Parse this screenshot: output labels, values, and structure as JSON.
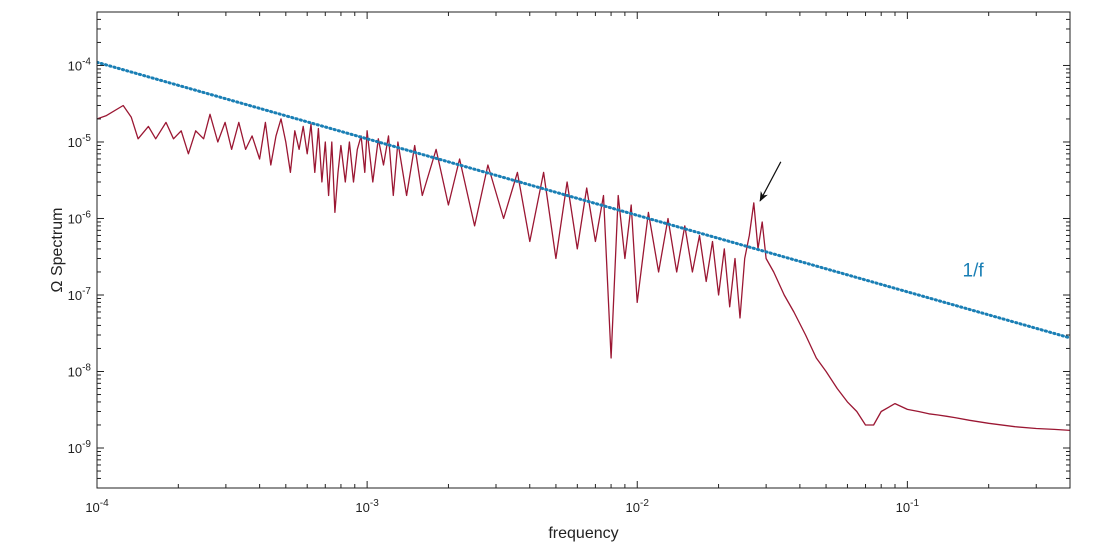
{
  "chart_data": {
    "type": "line",
    "xlabel": "frequency",
    "ylabel": "Ω Spectrum",
    "x_scale": "log",
    "y_scale": "log",
    "xlim": [
      0.0001,
      0.4
    ],
    "ylim": [
      3e-10,
      0.0005
    ],
    "x_ticks": [
      {
        "value": 0.0001,
        "base": "10",
        "exp": "-4"
      },
      {
        "value": 0.001,
        "base": "10",
        "exp": "-3"
      },
      {
        "value": 0.01,
        "base": "10",
        "exp": "-2"
      },
      {
        "value": 0.1,
        "base": "10",
        "exp": "-1"
      }
    ],
    "y_ticks": [
      {
        "value": 1e-09,
        "base": "10",
        "exp": "-9"
      },
      {
        "value": 1e-08,
        "base": "10",
        "exp": "-8"
      },
      {
        "value": 1e-07,
        "base": "10",
        "exp": "-7"
      },
      {
        "value": 1e-06,
        "base": "10",
        "exp": "-6"
      },
      {
        "value": 1e-05,
        "base": "10",
        "exp": "-5"
      },
      {
        "value": 0.0001,
        "base": "10",
        "exp": "-4"
      }
    ],
    "grid": false,
    "box": true,
    "series": [
      {
        "color": "#9b1733",
        "style": "solid",
        "x": [
          0.0001,
          0.000108,
          0.000125,
          0.000134,
          0.000142,
          0.000155,
          0.000165,
          0.00018,
          0.000192,
          0.000205,
          0.000218,
          0.000232,
          0.000248,
          0.000262,
          0.00028,
          0.000298,
          0.000315,
          0.000335,
          0.000355,
          0.000375,
          0.0004,
          0.00042,
          0.00044,
          0.00046,
          0.00048,
          0.0005,
          0.00052,
          0.00054,
          0.00056,
          0.00058,
          0.0006,
          0.00062,
          0.00064,
          0.00066,
          0.00068,
          0.0007,
          0.00072,
          0.00074,
          0.00076,
          0.00078,
          0.0008,
          0.00083,
          0.00086,
          0.00089,
          0.00092,
          0.00095,
          0.00098,
          0.001,
          0.00105,
          0.0011,
          0.00115,
          0.0012,
          0.00125,
          0.0013,
          0.0014,
          0.0015,
          0.0016,
          0.0018,
          0.002,
          0.0022,
          0.0025,
          0.0028,
          0.0032,
          0.0036,
          0.004,
          0.0045,
          0.005,
          0.0055,
          0.006,
          0.0065,
          0.007,
          0.0075,
          0.008,
          0.0085,
          0.009,
          0.0095,
          0.01,
          0.011,
          0.012,
          0.013,
          0.014,
          0.015,
          0.016,
          0.017,
          0.018,
          0.019,
          0.02,
          0.021,
          0.022,
          0.023,
          0.024,
          0.025,
          0.026,
          0.027,
          0.028,
          0.029,
          0.03,
          0.032,
          0.035,
          0.038,
          0.042,
          0.046,
          0.05,
          0.055,
          0.06,
          0.065,
          0.07,
          0.075,
          0.08,
          0.09,
          0.1,
          0.11,
          0.12,
          0.13,
          0.14,
          0.15,
          0.17,
          0.2,
          0.25,
          0.3,
          0.35,
          0.4
        ],
        "y": [
          2e-05,
          2.2e-05,
          3e-05,
          2.1e-05,
          1.1e-05,
          1.6e-05,
          1.1e-05,
          1.8e-05,
          1.1e-05,
          1.4e-05,
          7e-06,
          1.4e-05,
          1.1e-05,
          2.3e-05,
          1e-05,
          1.8e-05,
          8e-06,
          1.8e-05,
          8e-06,
          1.2e-05,
          6e-06,
          1.8e-05,
          5e-06,
          1.2e-05,
          2e-05,
          1e-05,
          4e-06,
          1.4e-05,
          8e-06,
          1.6e-05,
          7e-06,
          1.7e-05,
          4e-06,
          1.5e-05,
          3e-06,
          1e-05,
          2e-06,
          1e-05,
          1.2e-06,
          4e-06,
          9e-06,
          3e-06,
          1e-05,
          3e-06,
          8e-06,
          1.2e-05,
          4e-06,
          1.4e-05,
          3e-06,
          1.1e-05,
          5e-06,
          1.2e-05,
          2e-06,
          1e-05,
          2e-06,
          9e-06,
          2e-06,
          8e-06,
          1.5e-06,
          6e-06,
          8e-07,
          5e-06,
          1e-06,
          4e-06,
          5e-07,
          4e-06,
          3e-07,
          3e-06,
          4e-07,
          2.5e-06,
          5e-07,
          2e-06,
          1.5e-08,
          2e-06,
          3e-07,
          1.5e-06,
          8e-08,
          1.2e-06,
          2e-07,
          1e-06,
          2e-07,
          8e-07,
          2e-07,
          6e-07,
          1.5e-07,
          5e-07,
          1e-07,
          4e-07,
          7e-08,
          3e-07,
          5e-08,
          3e-07,
          6e-07,
          1.6e-06,
          4e-07,
          9e-07,
          3e-07,
          2e-07,
          1e-07,
          6e-08,
          3e-08,
          1.5e-08,
          1e-08,
          6e-09,
          4e-09,
          3e-09,
          2e-09,
          2e-09,
          3e-09,
          3.8e-09,
          3.2e-09,
          3e-09,
          2.8e-09,
          2.7e-09,
          2.6e-09,
          2.5e-09,
          2.3e-09,
          2.1e-09,
          1.9e-09,
          1.8e-09,
          1.75e-09,
          1.7e-09
        ]
      },
      {
        "color": "#1a7fb5",
        "style": "dotted",
        "x": [
          0.0001,
          0.4
        ],
        "y": [
          0.00011,
          2.75e-08
        ]
      }
    ],
    "annotations": [
      {
        "text": "1/f",
        "x": 0.16,
        "y": 1.75e-07,
        "color": "#1a7fb5"
      },
      {
        "type": "arrow",
        "from": [
          0.034,
          5.5e-06
        ],
        "to": [
          0.0285,
          1.7e-06
        ],
        "color": "#111111"
      }
    ]
  }
}
